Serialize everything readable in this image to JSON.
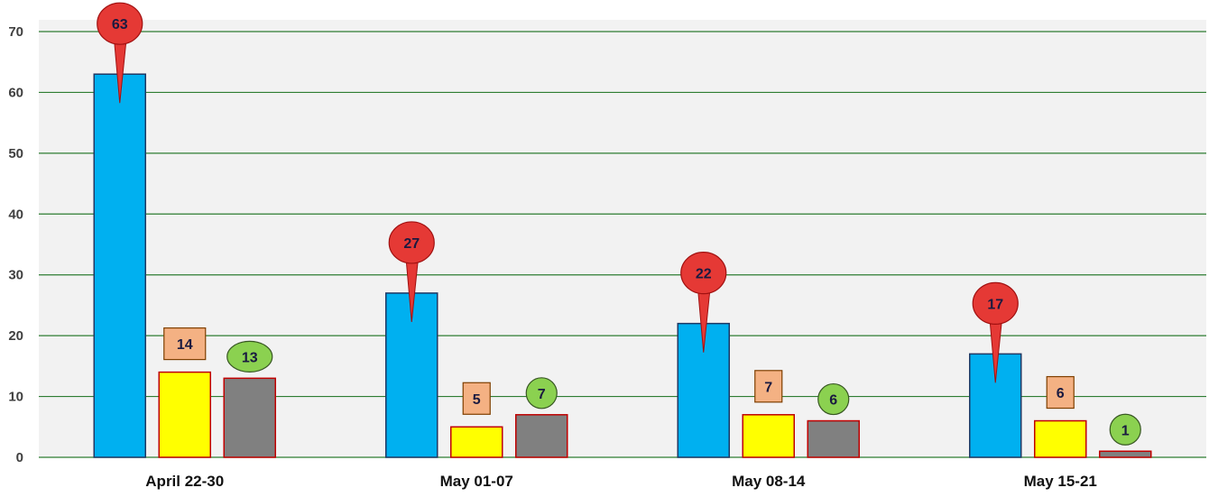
{
  "chart_data": {
    "type": "bar",
    "title": "",
    "xlabel": "",
    "ylabel": "",
    "ylim": [
      0,
      70
    ],
    "yticks": [
      0,
      10,
      20,
      30,
      40,
      50,
      60,
      70
    ],
    "grid": true,
    "legend": "none",
    "categories": [
      "April 22-30",
      "May 01-07",
      "May 08-14",
      "May 15-21"
    ],
    "series": [
      {
        "values": [
          63,
          27,
          22,
          17
        ],
        "color": "#00B0F0",
        "border_color": "#1F3864",
        "label_style": "red-pin"
      },
      {
        "values": [
          14,
          5,
          7,
          6
        ],
        "color": "#FFFF00",
        "border_color": "#C00000",
        "label_style": "orange-box"
      },
      {
        "values": [
          13,
          7,
          6,
          1
        ],
        "color": "#808080",
        "border_color": "#C00000",
        "label_style": "green-oval"
      }
    ],
    "colors": {
      "plot_background": "#F2F2F2",
      "gridline": "#2E7D32",
      "pin_fill": "#E53935",
      "pin_stroke": "#A01010",
      "box_fill": "#F4B183",
      "box_stroke": "#7F3F00",
      "oval_fill": "#8BD150",
      "oval_stroke": "#385723"
    }
  }
}
